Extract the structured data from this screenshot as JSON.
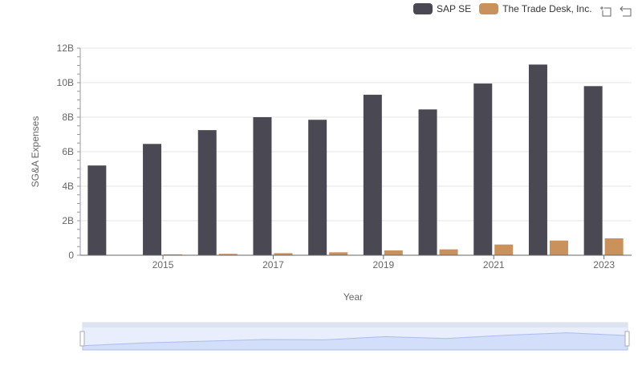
{
  "chart_data": {
    "type": "bar",
    "title": "",
    "xlabel": "Year",
    "ylabel": "SG&A Expenses",
    "ylim": [
      0,
      12
    ],
    "y_unit": "B",
    "yticks": [
      "0",
      "2B",
      "4B",
      "6B",
      "8B",
      "10B",
      "12B"
    ],
    "xticks": [
      "2015",
      "2017",
      "2019",
      "2021",
      "2023"
    ],
    "categories": [
      "2014",
      "2015",
      "2016",
      "2017",
      "2018",
      "2019",
      "2020",
      "2021",
      "2022",
      "2023"
    ],
    "series": [
      {
        "name": "SAP SE",
        "color": "#4a4953",
        "values": [
          5.2,
          6.45,
          7.25,
          8.0,
          7.85,
          9.3,
          8.45,
          9.95,
          11.05,
          9.8
        ]
      },
      {
        "name": "The Trade Desk, Inc.",
        "color": "#c9915c",
        "values": [
          0.01,
          0.05,
          0.08,
          0.12,
          0.17,
          0.28,
          0.34,
          0.62,
          0.85,
          0.98
        ]
      }
    ],
    "legend": "top-right",
    "grid": true
  }
}
